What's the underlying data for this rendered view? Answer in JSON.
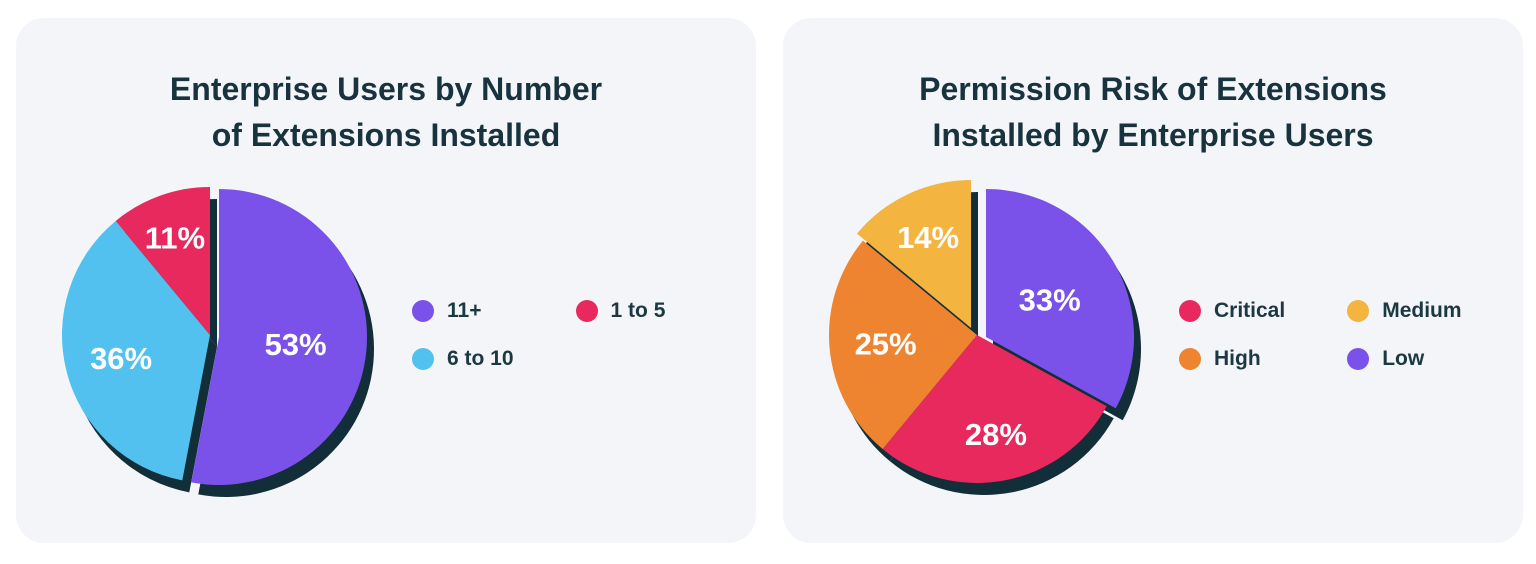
{
  "page": {
    "background": "#ffffff",
    "card_background": "#f3f5f8",
    "title_color": "#18333d",
    "shadow_color": "#122e38",
    "label_color": "#ffffff"
  },
  "chart_data": [
    {
      "type": "pie",
      "title": "Enterprise Users by Number of Extensions Installed",
      "title_lines": [
        "Enterprise Users by Number",
        "of Extensions Installed"
      ],
      "start_angle_deg": 0,
      "direction": "clockwise",
      "legend_position": "right",
      "slices": [
        {
          "label": "11+",
          "value": 53,
          "color": "#7b52e9",
          "offset": [
            9,
            2
          ],
          "label_r": 0.52
        },
        {
          "label": "6 to 10",
          "value": 36,
          "color": "#52c1f0",
          "offset": [
            0,
            0
          ],
          "label_r": 0.62
        },
        {
          "label": "1 to 5",
          "value": 11,
          "color": "#e7295d",
          "offset": [
            0,
            0
          ],
          "label_r": 0.7
        }
      ],
      "legend": [
        {
          "label": "11+",
          "color": "#7b52e9"
        },
        {
          "label": "1 to 5",
          "color": "#e7295d"
        },
        {
          "label": "6 to 10",
          "color": "#52c1f0"
        }
      ]
    },
    {
      "type": "pie",
      "title": "Permission Risk of Extensions Installed by Enterprise Users",
      "title_lines": [
        "Permission Risk of Extensions",
        "Installed by Enterprise Users"
      ],
      "start_angle_deg": 0,
      "direction": "clockwise",
      "legend_position": "right",
      "slices": [
        {
          "label": "Low",
          "value": 33,
          "color": "#7b52e9",
          "offset": [
            9,
            2
          ],
          "label_r": 0.5
        },
        {
          "label": "Critical",
          "value": 28,
          "color": "#e7295d",
          "offset": [
            0,
            0
          ],
          "label_r": 0.68
        },
        {
          "label": "High",
          "value": 25,
          "color": "#ee8330",
          "offset": [
            0,
            0
          ],
          "label_r": 0.62
        },
        {
          "label": "Medium",
          "value": 14,
          "color": "#f3b440",
          "offset": [
            -6,
            -7
          ],
          "label_r": 0.68
        }
      ],
      "legend": [
        {
          "label": "Critical",
          "color": "#e7295d"
        },
        {
          "label": "Medium",
          "color": "#f3b440"
        },
        {
          "label": "High",
          "color": "#ee8330"
        },
        {
          "label": "Low",
          "color": "#7b52e9"
        }
      ]
    }
  ]
}
